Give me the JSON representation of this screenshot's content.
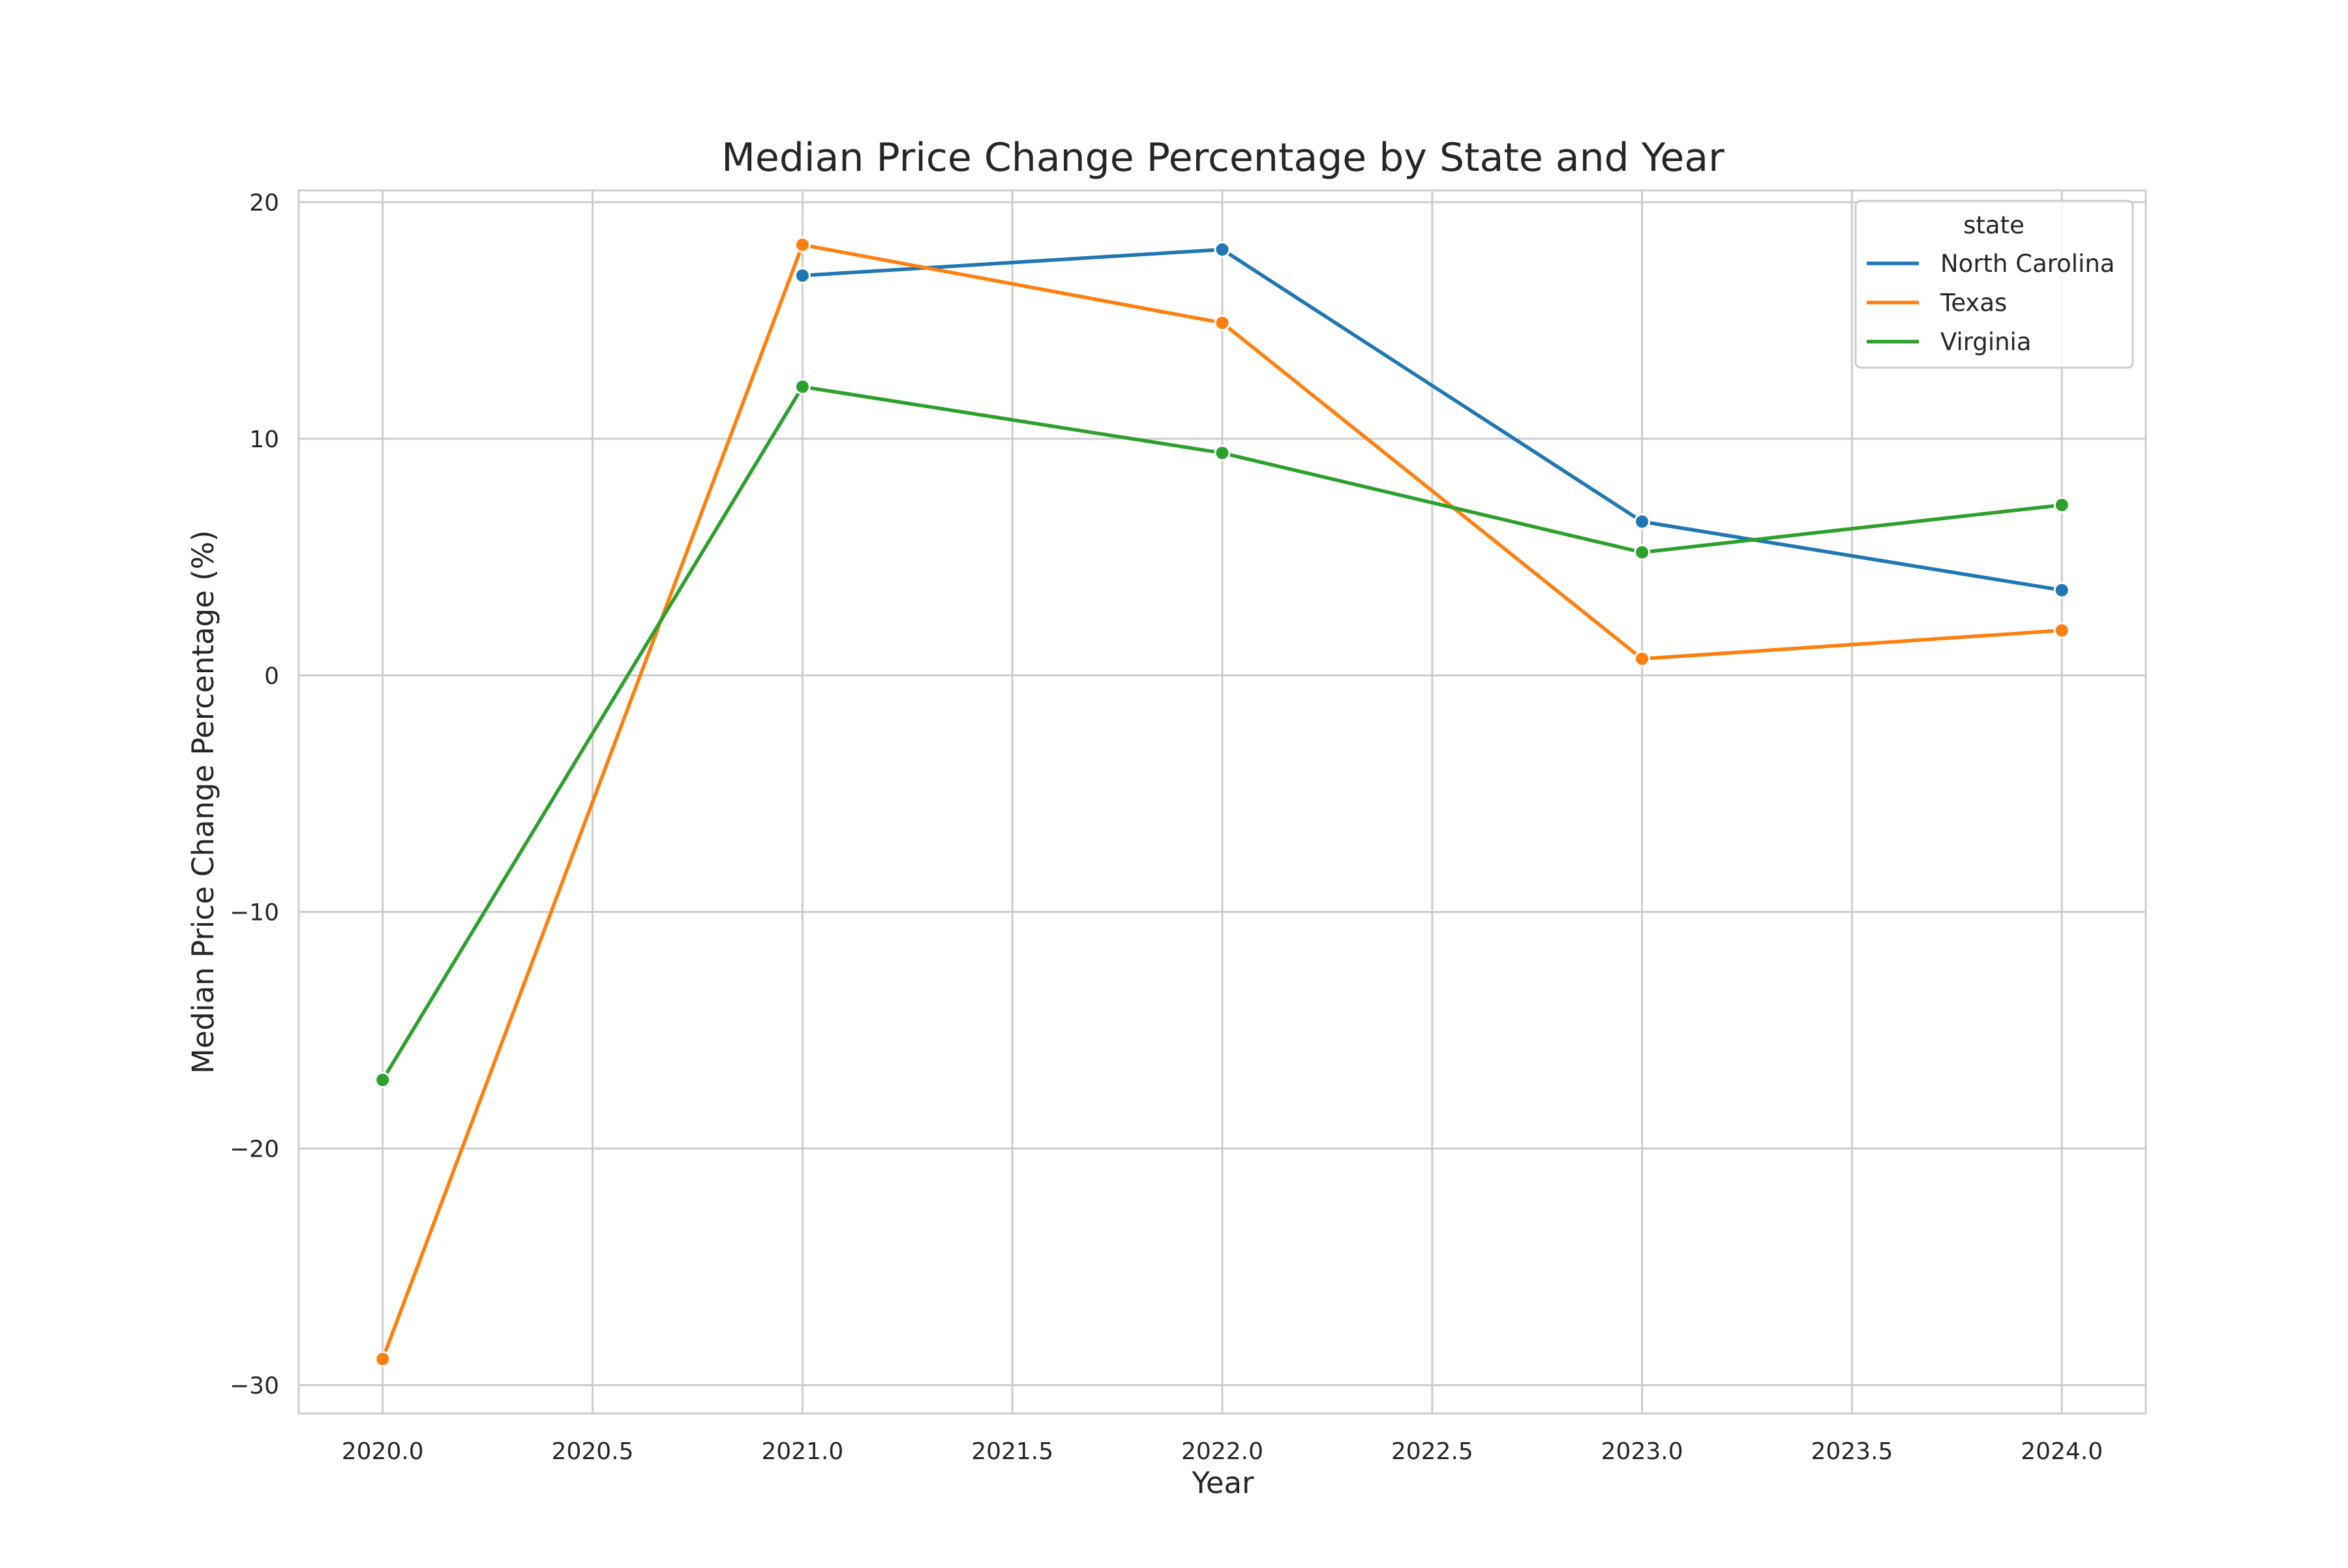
{
  "chart_data": {
    "type": "line",
    "title": "Median Price Change Percentage by State and Year",
    "xlabel": "Year",
    "ylabel": "Median Price Change Percentage (%)",
    "xlim": [
      2019.8,
      2024.2
    ],
    "ylim": [
      -31.2,
      20.5
    ],
    "xticks": [
      2020.0,
      2020.5,
      2021.0,
      2021.5,
      2022.0,
      2022.5,
      2023.0,
      2023.5,
      2024.0
    ],
    "xtick_labels": [
      "2020.0",
      "2020.5",
      "2021.0",
      "2021.5",
      "2022.0",
      "2022.5",
      "2023.0",
      "2023.5",
      "2024.0"
    ],
    "yticks": [
      -30,
      -20,
      -10,
      0,
      10,
      20
    ],
    "ytick_labels": [
      "−30",
      "−20",
      "−10",
      "0",
      "10",
      "20"
    ],
    "grid": true,
    "legend": {
      "title": "state",
      "placement": "upper right"
    },
    "series": [
      {
        "name": "North Carolina",
        "color": "#1f77b4",
        "x": [
          2021,
          2022,
          2023,
          2024
        ],
        "y": [
          16.9,
          18.0,
          6.5,
          3.6
        ]
      },
      {
        "name": "Texas",
        "color": "#ff7f0e",
        "x": [
          2020,
          2021,
          2022,
          2023,
          2024
        ],
        "y": [
          -28.9,
          18.2,
          14.9,
          0.7,
          1.9
        ]
      },
      {
        "name": "Virginia",
        "color": "#2ca02c",
        "x": [
          2020,
          2021,
          2022,
          2023,
          2024
        ],
        "y": [
          -17.1,
          12.2,
          9.4,
          5.2,
          7.2
        ]
      }
    ]
  }
}
